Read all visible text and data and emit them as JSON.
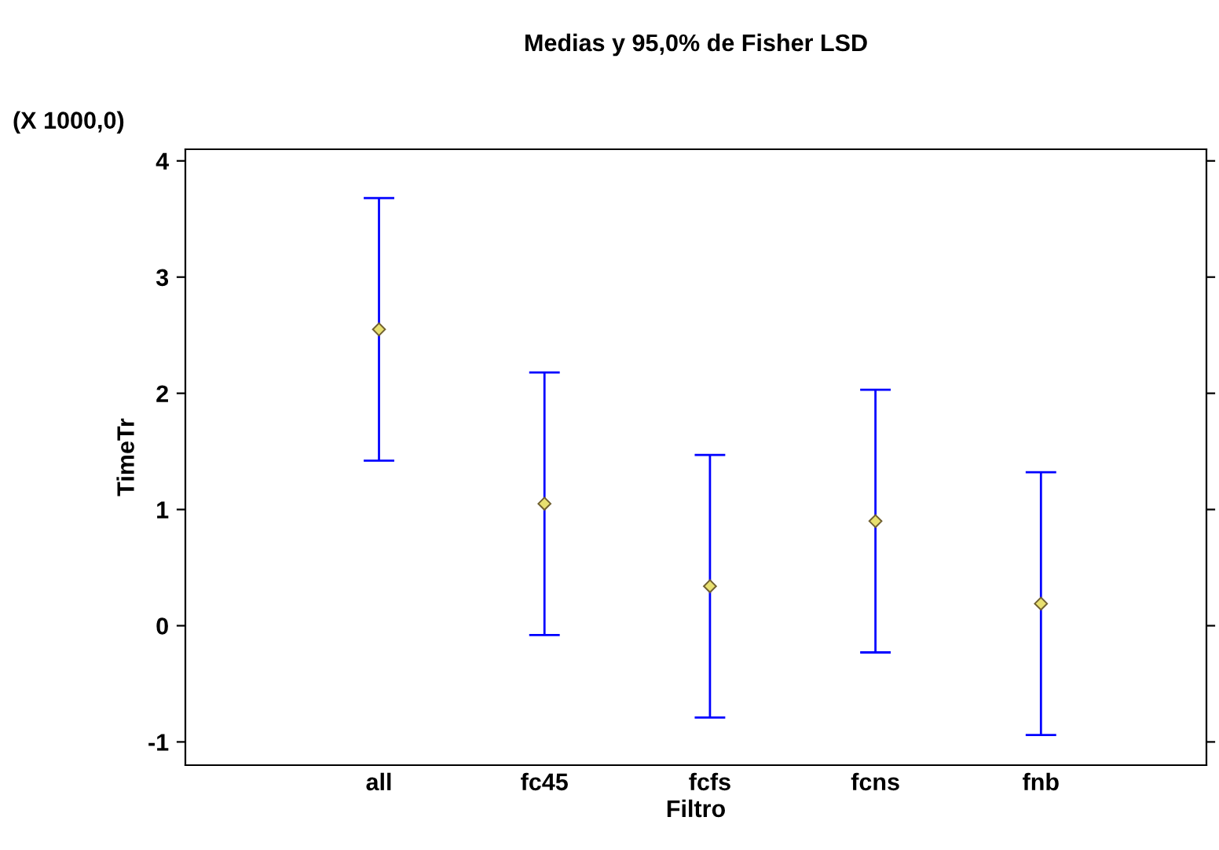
{
  "chart_data": {
    "type": "scatter",
    "title": "Medias y 95,0% de Fisher LSD",
    "xlabel": "Filtro",
    "ylabel": "TimeTr",
    "annotations": [
      "(X 1000,0)"
    ],
    "categories": [
      "all",
      "fc45",
      "fcfs",
      "fcns",
      "fnb"
    ],
    "series": [
      {
        "color": "#e8e070",
        "values": [
          2.55,
          1.05,
          0.34,
          0.9,
          0.19
        ],
        "errors": [
          1.13,
          1.13,
          1.13,
          1.13,
          1.13
        ]
      }
    ],
    "ylim": [
      -1.2,
      4.1
    ],
    "yticks": [
      -1,
      0,
      1,
      2,
      3,
      4
    ],
    "marker": "diamond",
    "grid": false,
    "legend": false
  }
}
